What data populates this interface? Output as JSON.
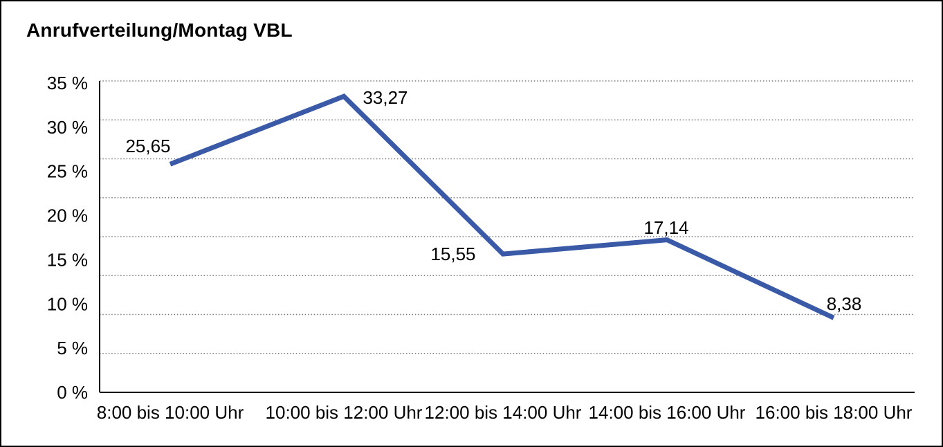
{
  "chart_data": {
    "type": "line",
    "title": "Anrufverteilung/Montag VBL",
    "unit": "%",
    "categories": [
      "8:00 bis 10:00 Uhr",
      "10:00 bis 12:00 Uhr",
      "12:00 bis 14:00 Uhr",
      "14:00 bis 16:00 Uhr",
      "16:00 bis 18:00 Uhr"
    ],
    "values": [
      25.65,
      33.27,
      15.55,
      17.14,
      8.38
    ],
    "value_labels": [
      "25,65",
      "33,27",
      "15,55",
      "17,14",
      "8,38"
    ],
    "y_tick_labels": [
      "35 %",
      "30 %",
      "25 %",
      "20 %",
      "15 %",
      "10 %",
      "5 %",
      "0 %"
    ],
    "ylim": [
      0,
      35
    ],
    "xlabel": "",
    "ylabel": "",
    "grid": "horizontal-dotted",
    "legend": "none",
    "colors": {
      "line": "#3A59A6",
      "grid": "#777777",
      "axis": "#000000",
      "text": "#000000",
      "background": "#ffffff",
      "border": "#000000"
    }
  }
}
